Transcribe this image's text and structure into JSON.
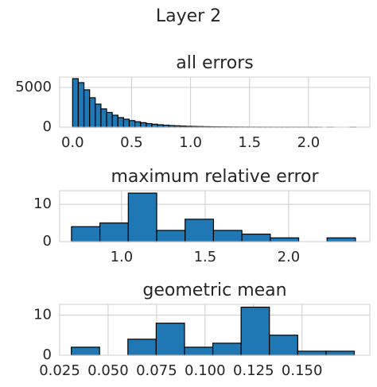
{
  "title": "Layer 2",
  "chart_data": [
    {
      "type": "histogram",
      "title": "all errors",
      "bins": [
        0,
        0.048,
        0.096,
        0.144,
        0.192,
        0.24,
        0.288,
        0.336,
        0.384,
        0.432,
        0.48,
        0.528,
        0.576,
        0.624,
        0.672,
        0.72,
        0.768,
        0.816,
        0.864,
        0.912,
        0.96,
        1.008,
        1.056,
        1.104,
        1.152,
        1.2,
        1.248,
        1.296,
        1.344,
        1.392,
        1.44,
        1.488,
        1.536,
        1.584,
        1.632,
        1.68,
        1.728,
        1.776,
        1.824,
        1.872,
        1.92,
        1.968,
        2.016,
        2.064,
        2.112,
        2.16,
        2.208,
        2.256,
        2.304,
        2.352,
        2.4
      ],
      "values": [
        6100,
        5600,
        4700,
        3700,
        2900,
        2300,
        1850,
        1500,
        1200,
        1000,
        820,
        680,
        560,
        450,
        370,
        300,
        250,
        200,
        170,
        140,
        110,
        90,
        75,
        60,
        50,
        40,
        32,
        26,
        20,
        16,
        13,
        10,
        8,
        6,
        5,
        4,
        3,
        3,
        2,
        2,
        1,
        1,
        1,
        1,
        0,
        1,
        0,
        0,
        0,
        1
      ],
      "color": "#1f77b4",
      "edgecolor": "#000000",
      "xlim": [
        -0.11,
        2.52
      ],
      "xticks": [
        {
          "value": 0,
          "label": "0.0"
        },
        0.5,
        {
          "value": 1,
          "label": "1.0"
        },
        1.5,
        {
          "value": 2,
          "label": "2.0"
        }
      ],
      "ylim": [
        0,
        6300
      ],
      "yticks": [
        0,
        5000
      ],
      "grid": true
    },
    {
      "type": "histogram",
      "title": "maximum relative error",
      "bins": [
        0.7,
        0.87,
        1.04,
        1.21,
        1.38,
        1.55,
        1.72,
        1.89,
        2.06,
        2.23,
        2.4
      ],
      "values": [
        4,
        5,
        13,
        3,
        6,
        3,
        2,
        1,
        0,
        1
      ],
      "color": "#1f77b4",
      "edgecolor": "#000000",
      "xlim": [
        0.629,
        2.486
      ],
      "xticks": [
        {
          "value": 1,
          "label": "1.0"
        },
        1.5,
        {
          "value": 2,
          "label": "2.0"
        }
      ],
      "ylim": [
        0,
        13.65
      ],
      "yticks": [
        0,
        10
      ],
      "grid": true
    },
    {
      "type": "histogram",
      "title": "geometric mean",
      "bins": [
        0.031,
        0.0456,
        0.0602,
        0.0748,
        0.0894,
        0.104,
        0.1186,
        0.1332,
        0.1478,
        0.1624,
        0.177
      ],
      "values": [
        2,
        0,
        4,
        8,
        2,
        3,
        12,
        5,
        1,
        1
      ],
      "color": "#1f77b4",
      "edgecolor": "#000000",
      "xlim": [
        0.025,
        0.185
      ],
      "xticks": [
        0.025,
        {
          "value": 0.05,
          "label": "0.050"
        },
        0.075,
        {
          "value": 0.1,
          "label": "0.100"
        },
        0.125,
        {
          "value": 0.15,
          "label": "0.150"
        }
      ],
      "ylim": [
        0,
        12.7
      ],
      "yticks": [
        0,
        10
      ],
      "grid": true
    }
  ]
}
